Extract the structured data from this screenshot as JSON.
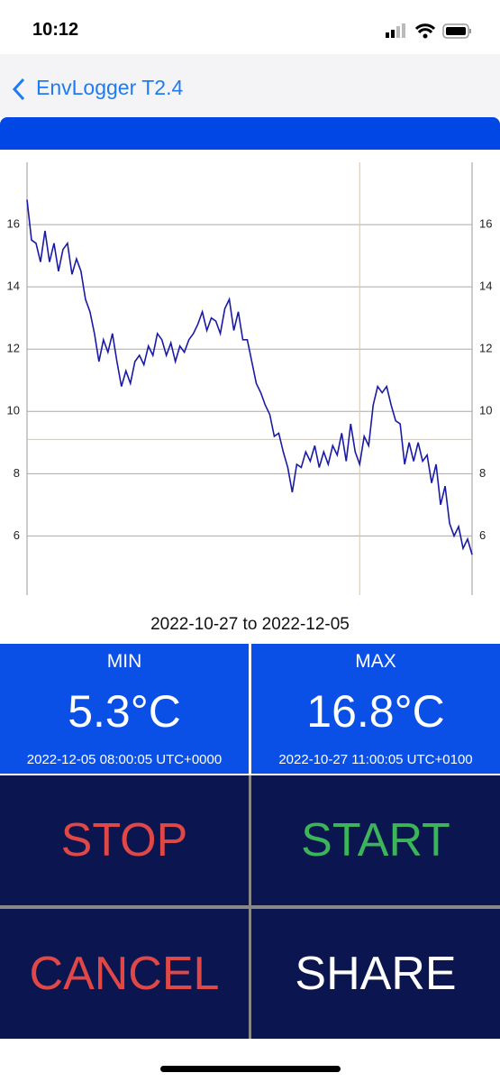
{
  "status_bar": {
    "time": "10:12"
  },
  "nav": {
    "back_title": "EnvLogger T2.4"
  },
  "chart_data": {
    "type": "line",
    "series": [
      {
        "color": "#1a1aa6",
        "values": [
          16.8,
          15.5,
          15.4,
          14.8,
          15.8,
          14.8,
          15.4,
          14.5,
          15.2,
          15.4,
          14.4,
          14.9,
          14.5,
          13.6,
          13.2,
          12.5,
          11.6,
          12.3,
          11.9,
          12.5,
          11.6,
          10.8,
          11.3,
          10.9,
          11.6,
          11.8,
          11.5,
          12.1,
          11.8,
          12.5,
          12.3,
          11.8,
          12.2,
          11.6,
          12.1,
          11.9,
          12.3,
          12.5,
          12.8,
          13.2,
          12.6,
          13.0,
          12.9,
          12.5,
          13.3,
          13.6,
          12.6,
          13.2,
          12.3,
          12.3,
          11.6,
          10.9,
          10.6,
          10.2,
          9.9,
          9.2,
          9.3,
          8.7,
          8.2,
          7.4,
          8.3,
          8.2,
          8.7,
          8.4,
          8.9,
          8.2,
          8.7,
          8.3,
          8.9,
          8.6,
          9.3,
          8.4,
          9.6,
          8.7,
          8.3,
          9.2,
          8.9,
          10.2,
          10.8,
          10.6,
          10.8,
          10.2,
          9.7,
          9.6,
          8.3,
          9.0,
          8.4,
          9.0,
          8.4,
          8.6,
          7.7,
          8.3,
          7.0,
          7.6,
          6.4,
          6.0,
          6.3,
          5.6,
          5.9,
          5.4
        ]
      }
    ],
    "ylim": [
      4.1,
      18.0
    ],
    "yticks": [
      6,
      8,
      10,
      12,
      14,
      16
    ],
    "grid": true,
    "crosshair": {
      "x": 74,
      "y": 9.1,
      "color": "#e8c48a"
    },
    "xlabel": "2022-10-27 to 2022-12-05"
  },
  "stats": {
    "min": {
      "label": "MIN",
      "value": "5.3°C",
      "time": "2022-12-05 08:00:05 UTC+0000"
    },
    "max": {
      "label": "MAX",
      "value": "16.8°C",
      "time": "2022-10-27 11:00:05 UTC+0100"
    }
  },
  "buttons": [
    {
      "label": "STOP",
      "color": "#e04848"
    },
    {
      "label": "START",
      "color": "#3cb45a"
    },
    {
      "label": "CANCEL",
      "color": "#e04848"
    },
    {
      "label": "SHARE",
      "color": "#ffffff"
    }
  ]
}
